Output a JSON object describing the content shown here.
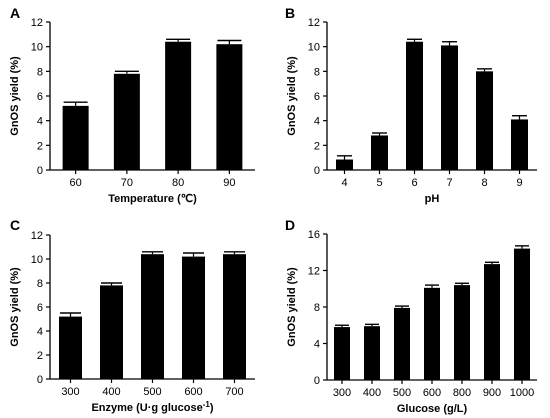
{
  "chart_data": [
    {
      "panel": "A",
      "type": "bar",
      "categories": [
        "60",
        "70",
        "80",
        "90"
      ],
      "values": [
        5.2,
        7.8,
        10.4,
        10.2
      ],
      "errors": [
        0.3,
        0.2,
        0.2,
        0.3
      ],
      "xlabel": "Temperature (℃)",
      "ylabel": "GnOS yield (%)",
      "ylim": [
        0,
        12
      ],
      "yticks": [
        0,
        2,
        4,
        6,
        8,
        10,
        12
      ],
      "bar_color": "#000000"
    },
    {
      "panel": "B",
      "type": "bar",
      "categories": [
        "4",
        "5",
        "6",
        "7",
        "8",
        "9"
      ],
      "values": [
        0.85,
        2.8,
        10.4,
        10.1,
        8.0,
        4.1
      ],
      "errors": [
        0.3,
        0.2,
        0.2,
        0.3,
        0.2,
        0.3
      ],
      "xlabel": "pH",
      "ylabel": "GnOS yield (%)",
      "ylim": [
        0,
        12
      ],
      "yticks": [
        0,
        2,
        4,
        6,
        8,
        10,
        12
      ],
      "bar_color": "#000000"
    },
    {
      "panel": "C",
      "type": "bar",
      "categories": [
        "300",
        "400",
        "500",
        "600",
        "700"
      ],
      "values": [
        5.2,
        7.8,
        10.4,
        10.2,
        10.4
      ],
      "errors": [
        0.3,
        0.2,
        0.2,
        0.3,
        0.2
      ],
      "xlabel": "Enzyme (U·g glucose",
      "xlabel_sup": "-1",
      "xlabel_tail": ")",
      "ylabel": "GnOS yield (%)",
      "ylim": [
        0,
        12
      ],
      "yticks": [
        0,
        2,
        4,
        6,
        8,
        10,
        12
      ],
      "bar_color": "#000000"
    },
    {
      "panel": "D",
      "type": "bar",
      "categories": [
        "300",
        "400",
        "500",
        "600",
        "800",
        "900",
        "1000"
      ],
      "values": [
        5.8,
        5.9,
        7.9,
        10.1,
        10.4,
        12.7,
        14.4
      ],
      "errors": [
        0.2,
        0.2,
        0.2,
        0.3,
        0.2,
        0.2,
        0.3
      ],
      "xlabel": "Glucose (g/L)",
      "ylabel": "GnOS yield (%)",
      "ylim": [
        0,
        16
      ],
      "yticks": [
        0,
        4,
        8,
        12,
        16
      ],
      "bar_color": "#000000"
    }
  ]
}
